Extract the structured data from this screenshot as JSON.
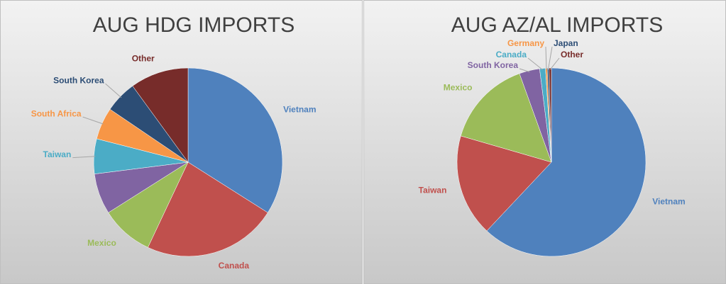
{
  "chart_data": [
    {
      "type": "pie",
      "title": "AUG HDG IMPORTS",
      "categories": [
        "Vietnam",
        "Canada",
        "Mexico",
        null,
        "Taiwan",
        "South Africa",
        "South Korea",
        "Other"
      ],
      "values": [
        34,
        23,
        9,
        7,
        6,
        5.5,
        5.5,
        10
      ],
      "colors": [
        "#4f81bd",
        "#c0504d",
        "#9bbb59",
        "#8064a2",
        "#4bacc6",
        "#f79646",
        "#2c4d75",
        "#772c2a"
      ]
    },
    {
      "type": "pie",
      "title": "AUG AZ/AL IMPORTS",
      "categories": [
        "Vietnam",
        "Taiwan",
        "Mexico",
        "South Korea",
        "Canada",
        "Germany",
        "Japan",
        "Other"
      ],
      "values": [
        62,
        17.5,
        15,
        3.5,
        1,
        0.3,
        0.3,
        0.4
      ],
      "colors": [
        "#4f81bd",
        "#c0504d",
        "#9bbb59",
        "#8064a2",
        "#4bacc6",
        "#f79646",
        "#2c4d75",
        "#772c2a"
      ]
    }
  ]
}
